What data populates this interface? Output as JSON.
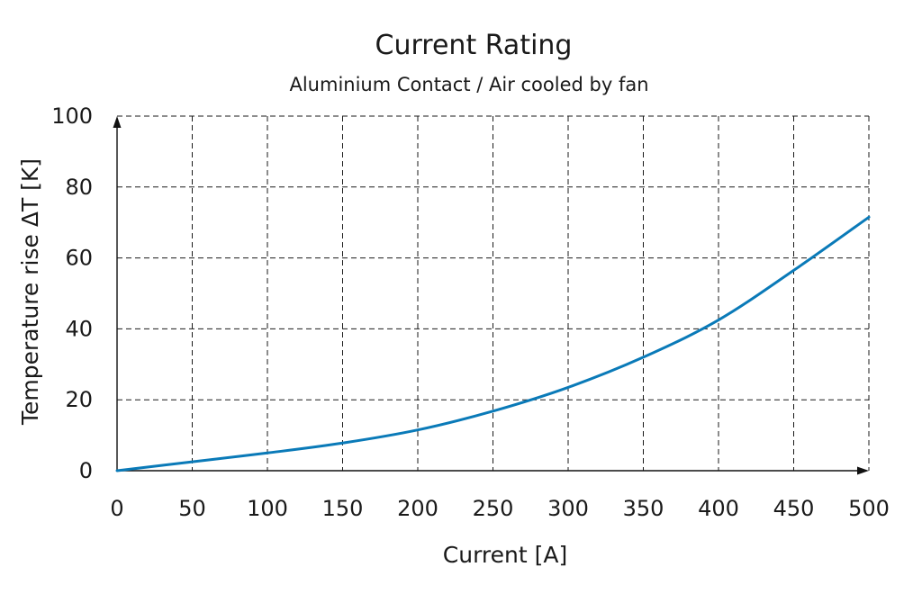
{
  "chart_data": {
    "type": "line",
    "title": "Current Rating",
    "subtitle": "Aluminium Contact / Air cooled by fan",
    "xlabel": "Current [A]",
    "ylabel": "Temperature rise ΔT [K]",
    "xlim": [
      0,
      500
    ],
    "ylim": [
      0,
      100
    ],
    "xticks": [
      0,
      50,
      100,
      150,
      200,
      250,
      300,
      350,
      400,
      450,
      500
    ],
    "yticks": [
      0,
      20,
      40,
      60,
      80,
      100
    ],
    "grid": true,
    "line_color": "#0a7ab8",
    "series": [
      {
        "x": [
          0,
          50,
          100,
          150,
          200,
          250,
          300,
          350,
          400,
          450,
          500
        ],
        "y": [
          0,
          2.5,
          5,
          7.8,
          11.5,
          16.8,
          23.5,
          32,
          42.5,
          56.5,
          71.5
        ]
      }
    ]
  }
}
